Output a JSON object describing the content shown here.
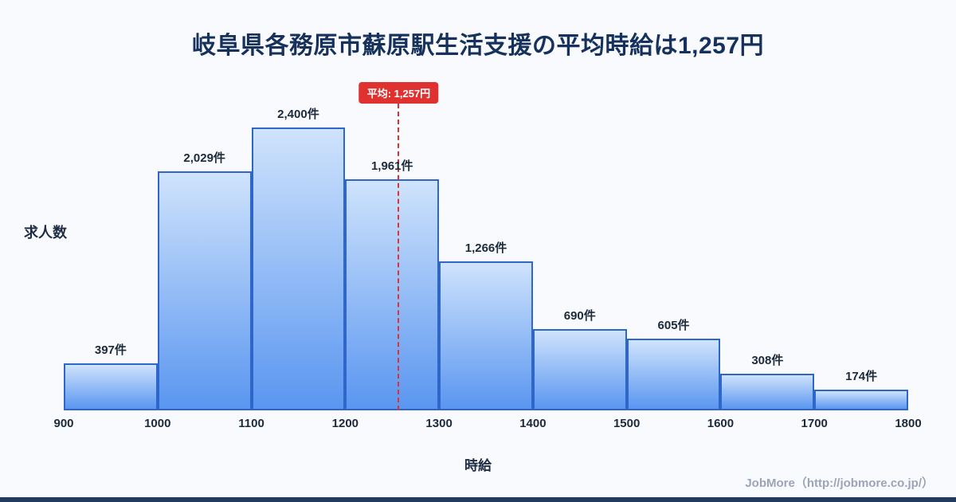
{
  "page": {
    "title": "岐阜県各務原市蘇原駅生活支援の平均時給は1,257円",
    "footer": "JobMore（http://jobmore.co.jp/）"
  },
  "chart_data": {
    "type": "bar",
    "title": "岐阜県各務原市蘇原駅生活支援の平均時給は1,257円",
    "xlabel": "時給",
    "ylabel": "求人数",
    "bin_edges": [
      900,
      1000,
      1100,
      1200,
      1300,
      1400,
      1500,
      1600,
      1700,
      1800
    ],
    "values": [
      397,
      2029,
      2400,
      1961,
      1266,
      690,
      605,
      308,
      174
    ],
    "value_labels": [
      "397件",
      "2,029件",
      "2,400件",
      "1,961件",
      "1,266件",
      "690件",
      "605件",
      "308件",
      "174件"
    ],
    "average": 1257,
    "average_label": "平均: 1,257円",
    "ylim": [
      0,
      2600
    ],
    "grid": false,
    "legend": "none",
    "colors": {
      "background": "#f8fafd",
      "title": "#16325c",
      "bar_fill_top": "#cfe3fc",
      "bar_fill_bottom": "#5a96f0",
      "bar_border": "#2e66c9",
      "average_line": "#e03131",
      "badge_bg": "#e03131",
      "badge_text": "#ffffff"
    }
  }
}
